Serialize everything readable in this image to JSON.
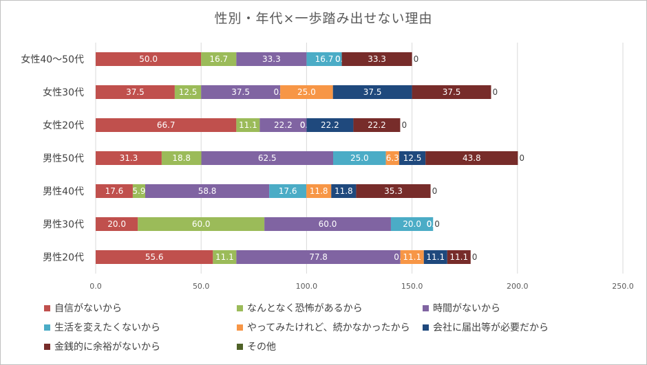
{
  "chart_data": {
    "type": "bar",
    "orientation": "horizontal",
    "stacked": true,
    "title": "性別・年代×一歩踏み出せない理由",
    "categories": [
      "女性40〜50代",
      "女性30代",
      "女性20代",
      "男性50代",
      "男性40代",
      "男性30代",
      "男性20代"
    ],
    "xlim": [
      0,
      250
    ],
    "xticks": [
      "0.0",
      "50.0",
      "100.0",
      "150.0",
      "200.0",
      "250.0"
    ],
    "grid": true,
    "legend_position": "bottom",
    "series": [
      {
        "name": "自信がないから",
        "color": "#c0504d",
        "values": [
          50.0,
          37.5,
          66.7,
          31.3,
          17.6,
          20.0,
          55.6
        ],
        "labels": [
          "50.0",
          "37.5",
          "66.7",
          "31.3",
          "17.6",
          "20.0",
          "55.6"
        ]
      },
      {
        "name": "なんとなく恐怖があるから",
        "color": "#9bbb59",
        "values": [
          16.7,
          12.5,
          11.1,
          18.8,
          5.9,
          60.0,
          11.1
        ],
        "labels": [
          "16.7",
          "12.5",
          "11.1",
          "18.8",
          "5.9",
          "60.0",
          "11.1"
        ]
      },
      {
        "name": "時間がないから",
        "color": "#8064a2",
        "values": [
          33.3,
          37.5,
          22.2,
          62.5,
          58.8,
          60.0,
          77.8
        ],
        "labels": [
          "33.3",
          "37.5",
          "22.2",
          "62.5",
          "58.8",
          "60.0",
          "77.8"
        ]
      },
      {
        "name": "生活を変えたくないから",
        "color": "#4bacc6",
        "values": [
          16.7,
          0.0,
          0.0,
          25.0,
          17.6,
          20.0,
          0.0
        ],
        "labels": [
          "16.7",
          "0.0",
          "0.0",
          "25.0",
          "17.6",
          "20.0",
          "0.0"
        ]
      },
      {
        "name": "やってみたけれど、続かなかったから",
        "color": "#f79646",
        "values": [
          0.0,
          25.0,
          0.0,
          6.3,
          11.8,
          0.0,
          11.1
        ],
        "labels": [
          "0.0",
          "25.0",
          "0.0",
          "6.3",
          "11.8",
          "0.0",
          "11.1"
        ]
      },
      {
        "name": "会社に届出等が必要だから",
        "color": "#1f497d",
        "values": [
          0.0,
          37.5,
          22.2,
          12.5,
          11.8,
          0.0,
          11.1
        ],
        "labels": [
          "0.0",
          "37.5",
          "22.2",
          "12.5",
          "11.8",
          "0.0",
          "11.1"
        ]
      },
      {
        "name": "金銭的に余裕がないから",
        "color": "#772c2a",
        "values": [
          33.3,
          37.5,
          22.2,
          43.8,
          35.3,
          0.0,
          11.1
        ],
        "labels": [
          "33.3",
          "37.5",
          "22.2",
          "43.8",
          "35.3",
          "0.0",
          "11.1"
        ]
      },
      {
        "name": "その他",
        "color": "#4f6228",
        "values": [
          0,
          0,
          0,
          0,
          0,
          0,
          0
        ],
        "labels": [
          "0",
          "0",
          "0",
          "0",
          "0",
          "0",
          "0"
        ]
      }
    ]
  }
}
